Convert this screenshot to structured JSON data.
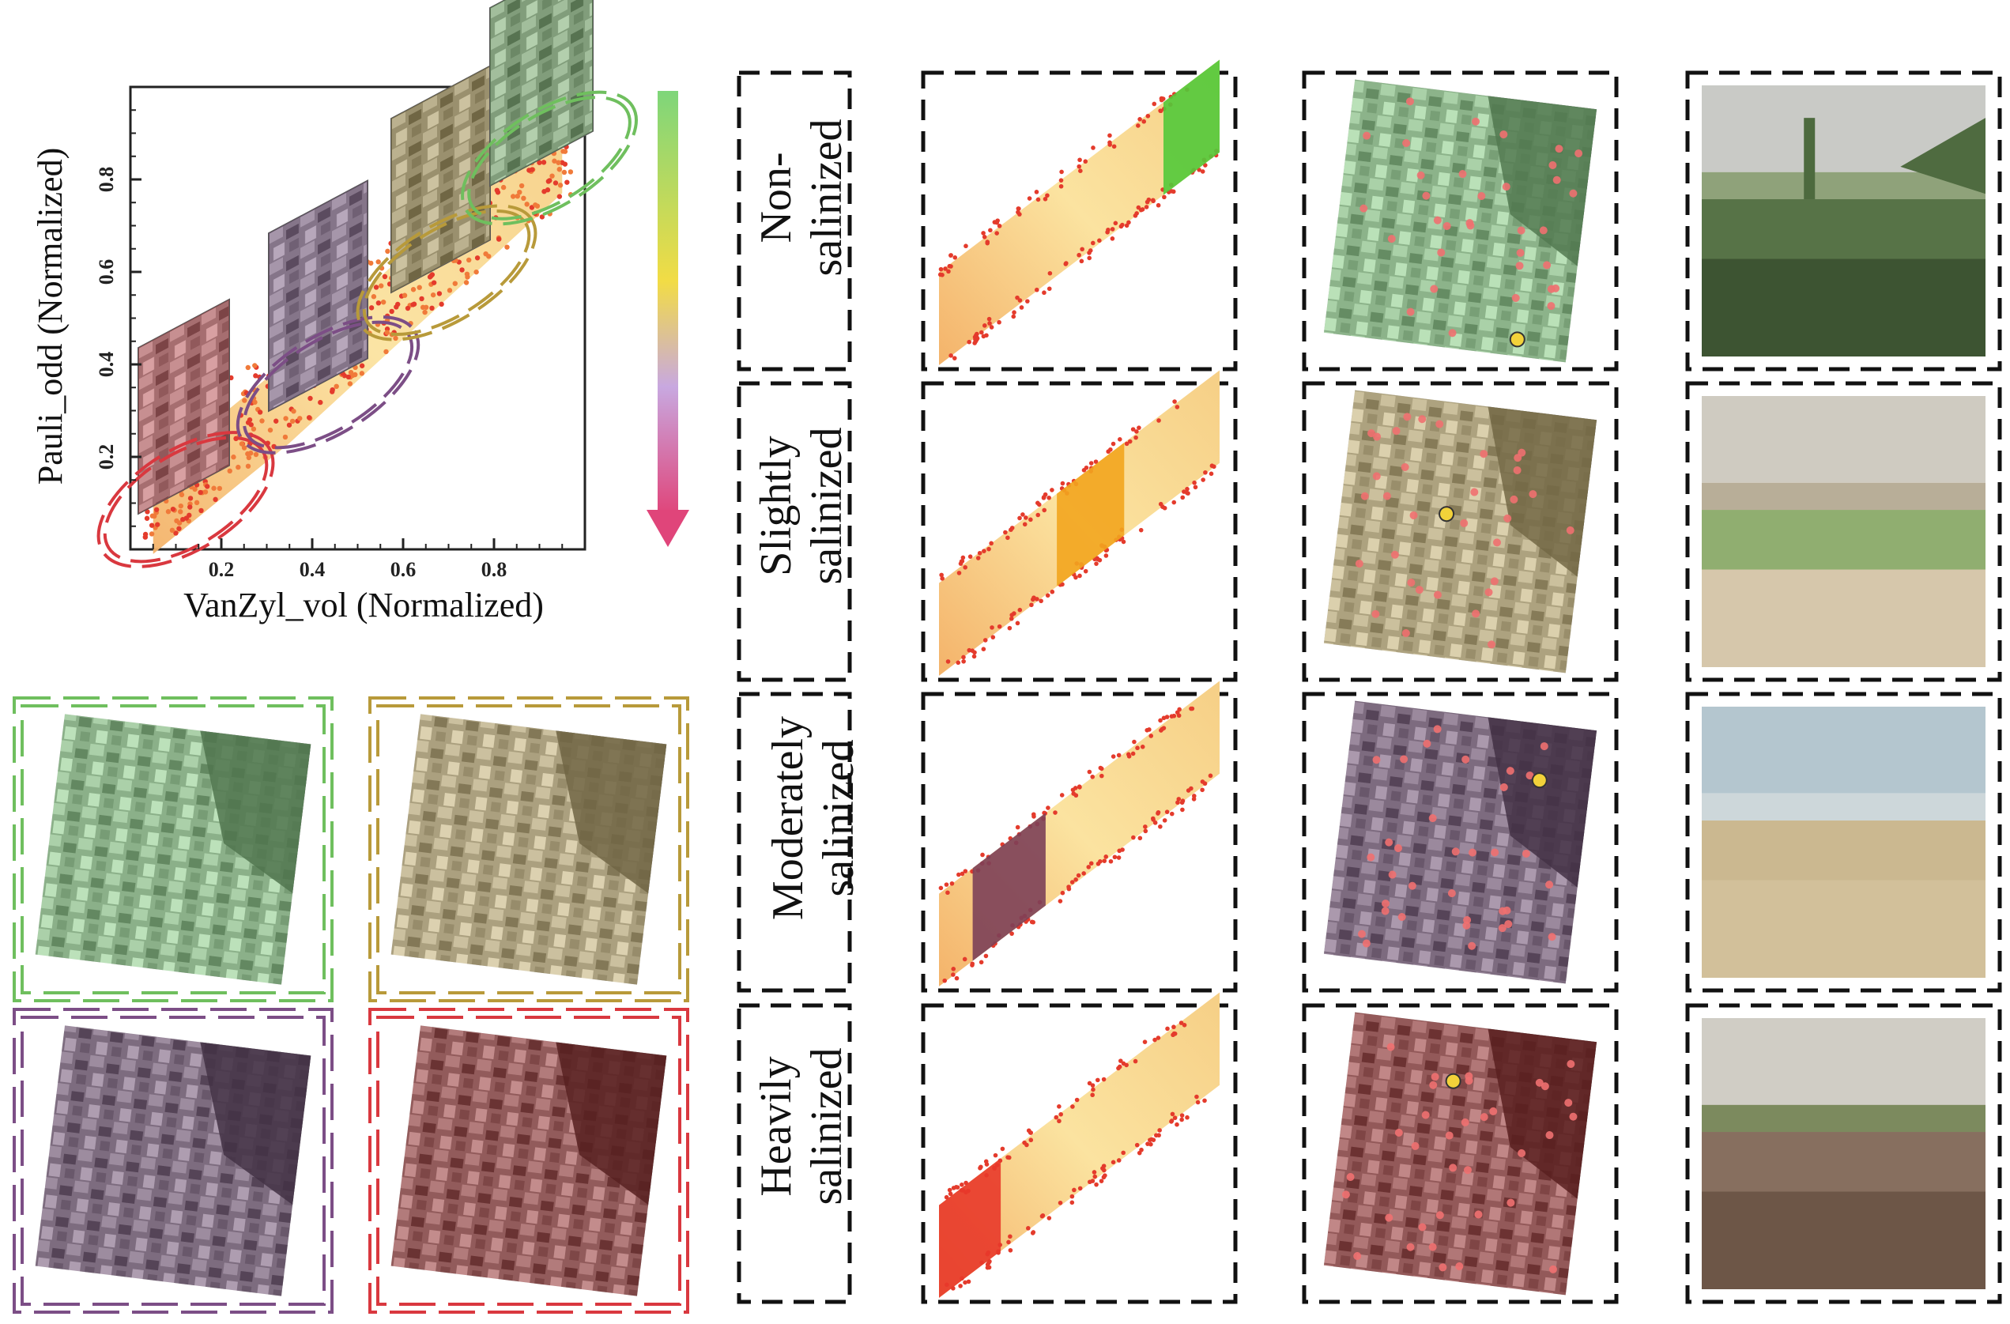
{
  "figure": {
    "scatter": {
      "ylabel": "Pauli_odd (Normalized)",
      "xlabel": "VanZyl_vol (Normalized)",
      "x_ticks": [
        "0.2",
        "0.4",
        "0.6",
        "0.8"
      ],
      "y_ticks": [
        "0.2",
        "0.4",
        "0.6",
        "0.8"
      ]
    },
    "classes": [
      {
        "key": "non",
        "label": "Non-\nsalinized",
        "color": "#6fbf5e",
        "overlay": "#8ff08a"
      },
      {
        "key": "slight",
        "label": "Slightly\nsalinized",
        "color": "#b89a3a",
        "overlay": "#e2c66e"
      },
      {
        "key": "moderate",
        "label": "Moderately\nsalinized",
        "color": "#7c4e86",
        "overlay": "#6a3d6e"
      },
      {
        "key": "heavy",
        "label": "Heavily\nsalinized",
        "color": "#d9383f",
        "overlay": "#a01010"
      }
    ],
    "arrow_gradient": [
      "#7ed67a",
      "#f2dc45",
      "#b496d6",
      "#e0457a"
    ]
  },
  "chart_data": {
    "type": "scatter",
    "xlabel": "VanZyl_vol (Normalized)",
    "ylabel": "Pauli_odd (Normalized)",
    "xlim": [
      0,
      1
    ],
    "ylim": [
      0,
      1
    ],
    "series": [
      {
        "name": "",
        "x": [
          0.05,
          0.15,
          0.25,
          0.35,
          0.45,
          0.55,
          0.65,
          0.75,
          0.85,
          0.95
        ],
        "y": [
          0.08,
          0.16,
          0.24,
          0.32,
          0.41,
          0.5,
          0.59,
          0.68,
          0.77,
          0.86
        ]
      }
    ]
  }
}
